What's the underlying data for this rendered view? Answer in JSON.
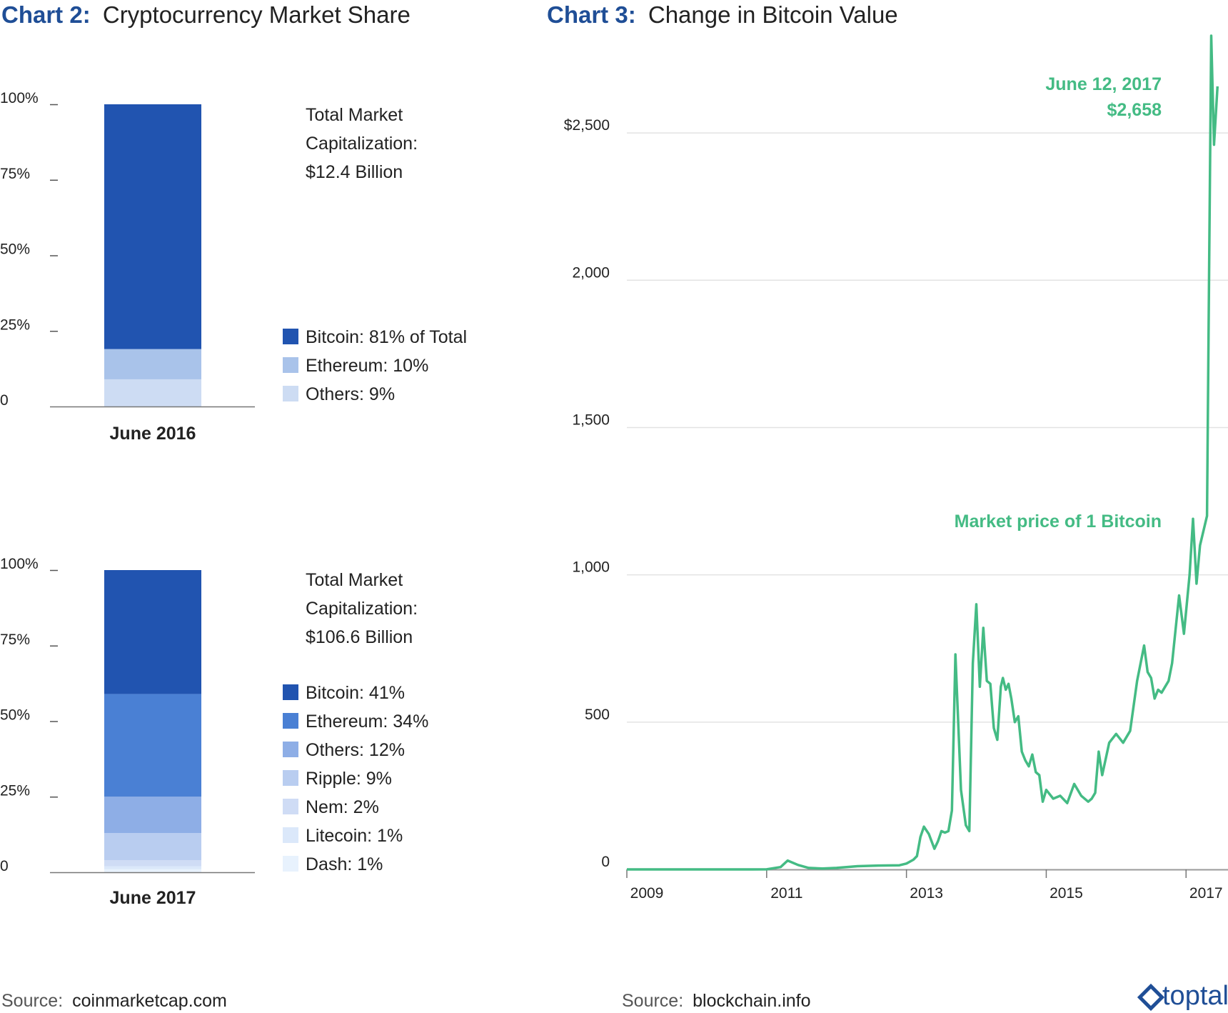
{
  "charts": {
    "market_share": {
      "title_prefix": "Chart 2:",
      "title_text": "Cryptocurrency Market Share",
      "y_tick_labels": [
        "100%",
        "75%",
        "50%",
        "25%",
        "0"
      ],
      "source_prefix": "Source:",
      "source_text": "coinmarketcap.com"
    },
    "bitcoin_value": {
      "title_prefix": "Chart 3:",
      "title_text": "Change in Bitcoin Value",
      "source_prefix": "Source:",
      "source_text": "blockchain.info"
    }
  },
  "brand": {
    "logo_text": "toptal"
  },
  "chart_data": [
    {
      "type": "bar",
      "stacked": true,
      "category": "June 2016",
      "total_label_lines": [
        "Total Market",
        "Capitalization:",
        "$12.4 Billion"
      ],
      "ylim": [
        0,
        100
      ],
      "y_unit": "%",
      "segments": [
        {
          "name": "Bitcoin",
          "value": 81,
          "legend": "Bitcoin: 81% of Total",
          "color": "#2154b0"
        },
        {
          "name": "Ethereum",
          "value": 10,
          "legend": "Ethereum: 10%",
          "color": "#a9c3ea"
        },
        {
          "name": "Others",
          "value": 9,
          "legend": "Others: 9%",
          "color": "#cddcf3"
        }
      ]
    },
    {
      "type": "bar",
      "stacked": true,
      "category": "June 2017",
      "total_label_lines": [
        "Total Market",
        "Capitalization:",
        "$106.6 Billion"
      ],
      "ylim": [
        0,
        100
      ],
      "y_unit": "%",
      "segments": [
        {
          "name": "Bitcoin",
          "value": 41,
          "legend": "Bitcoin: 41%",
          "color": "#2154b0"
        },
        {
          "name": "Ethereum",
          "value": 34,
          "legend": "Ethereum: 34%",
          "color": "#4a80d4"
        },
        {
          "name": "Others",
          "value": 12,
          "legend": "Others: 12%",
          "color": "#8eaee6"
        },
        {
          "name": "Ripple",
          "value": 9,
          "legend": "Ripple: 9%",
          "color": "#b9cdf0"
        },
        {
          "name": "Nem",
          "value": 2,
          "legend": "Nem: 2%",
          "color": "#cfdcf5"
        },
        {
          "name": "Litecoin",
          "value": 1,
          "legend": "Litecoin: 1%",
          "color": "#dbe8fa"
        },
        {
          "name": "Dash",
          "value": 1,
          "legend": "Dash: 1%",
          "color": "#e8f2fd"
        }
      ]
    },
    {
      "type": "line",
      "ylim": [
        0,
        2830
      ],
      "xlim": [
        2009.0,
        2017.6
      ],
      "y_ticks": [
        0,
        500,
        1000,
        1500,
        2000,
        2500
      ],
      "y_tick_labels": [
        "0",
        "500",
        "1,000",
        "1,500",
        "2,000",
        "$2,500"
      ],
      "x_ticks": [
        2009,
        2011,
        2013,
        2015,
        2017
      ],
      "x_tick_labels": [
        "2009",
        "2011",
        "2013",
        "2015",
        "2017"
      ],
      "grid": true,
      "color": "#44bb84",
      "annotations": [
        {
          "text_lines": [
            "June 12, 2017",
            "$2,658"
          ],
          "x": 2017.45,
          "y": 2658
        },
        {
          "text_lines": [
            "Market price of 1 Bitcoin"
          ],
          "x": 2017.4,
          "y": 1180
        }
      ],
      "series": [
        {
          "x": [
            2009.0,
            2010.5,
            2010.8,
            2011.0,
            2011.2,
            2011.3,
            2011.45,
            2011.6,
            2011.8,
            2012.0,
            2012.3,
            2012.6,
            2012.9,
            2013.0,
            2013.1,
            2013.15,
            2013.2,
            2013.25,
            2013.32,
            2013.4,
            2013.45,
            2013.5,
            2013.55,
            2013.6,
            2013.65,
            2013.7,
            2013.78,
            2013.85,
            2013.9,
            2013.95,
            2014.0,
            2014.05,
            2014.1,
            2014.15,
            2014.2,
            2014.25,
            2014.3,
            2014.35,
            2014.38,
            2014.42,
            2014.46,
            2014.5,
            2014.55,
            2014.6,
            2014.65,
            2014.7,
            2014.75,
            2014.8,
            2014.85,
            2014.9,
            2014.95,
            2015.0,
            2015.1,
            2015.2,
            2015.3,
            2015.4,
            2015.5,
            2015.6,
            2015.65,
            2015.7,
            2015.75,
            2015.8,
            2015.9,
            2016.0,
            2016.1,
            2016.2,
            2016.3,
            2016.4,
            2016.45,
            2016.5,
            2016.55,
            2016.6,
            2016.65,
            2016.7,
            2016.75,
            2016.8,
            2016.9,
            2016.97,
            2017.05,
            2017.1,
            2017.15,
            2017.2,
            2017.3,
            2017.33,
            2017.36,
            2017.4,
            2017.45
          ],
          "y": [
            0,
            0,
            0,
            0.3,
            8,
            30,
            15,
            5,
            3,
            5,
            11,
            13,
            14,
            20,
            33,
            45,
            110,
            145,
            120,
            70,
            95,
            130,
            125,
            130,
            200,
            730,
            270,
            150,
            130,
            700,
            900,
            620,
            820,
            640,
            630,
            480,
            440,
            620,
            650,
            610,
            630,
            580,
            500,
            520,
            400,
            370,
            350,
            390,
            330,
            320,
            230,
            270,
            240,
            250,
            225,
            290,
            250,
            230,
            240,
            260,
            400,
            320,
            430,
            460,
            430,
            470,
            640,
            760,
            670,
            650,
            580,
            610,
            600,
            620,
            640,
            700,
            930,
            800,
            1000,
            1190,
            970,
            1100,
            1200,
            2050,
            2830,
            2460,
            2658
          ]
        }
      ]
    }
  ]
}
